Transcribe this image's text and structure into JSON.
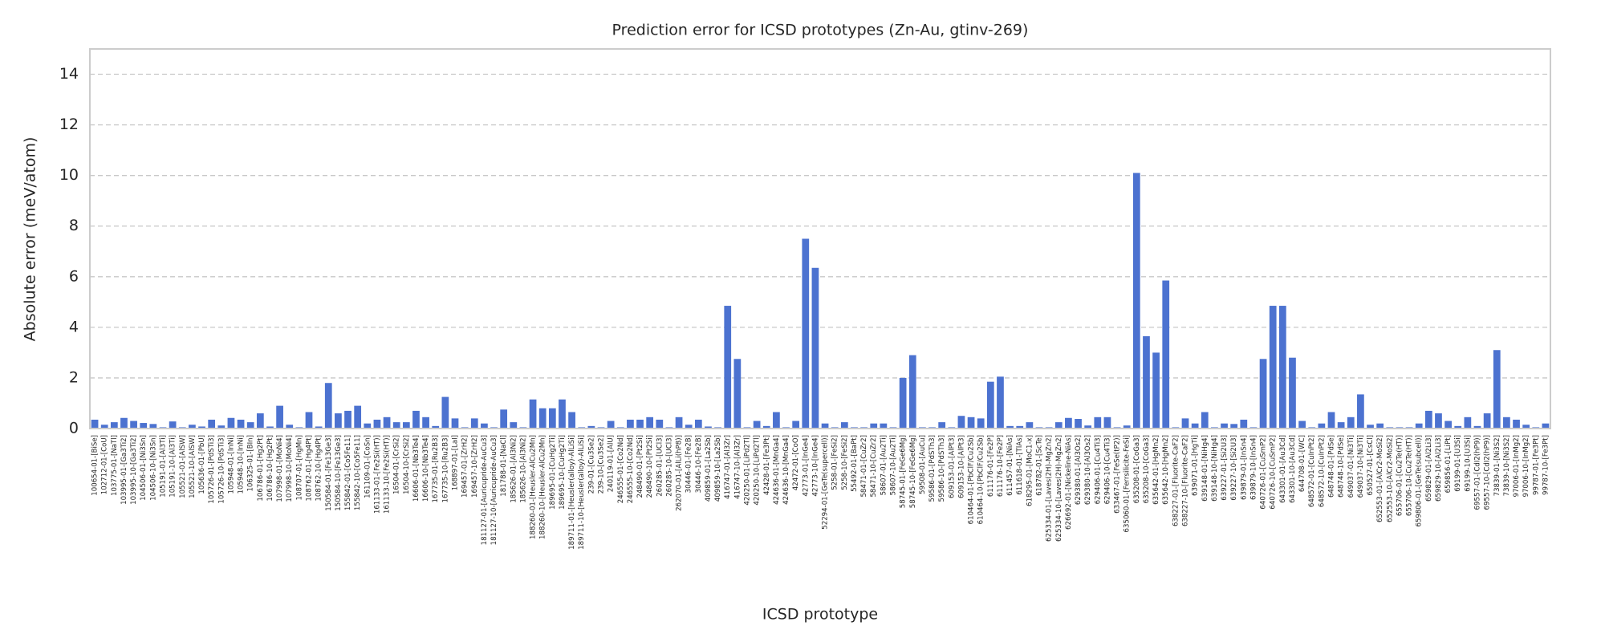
{
  "chart_data": {
    "type": "bar",
    "title": "Prediction error for ICSD prototypes (Zn-Au, gtinv-269)",
    "x_label": "ICSD prototype",
    "y_label": "Absolute error (meV/atom)",
    "color": "#4c72d0",
    "grid": true,
    "ylim": [
      0,
      15
    ],
    "yticks": [
      0,
      2,
      4,
      6,
      8,
      10,
      12,
      14
    ],
    "categories": [
      "100654-01-[BiSe]",
      "102712-01-[CoU]",
      "103775-01-[NaTl]",
      "103995-01-[Ga3Ti2]",
      "103995-10-[Ga3Ti2]",
      "104506-01-[Ni3Sn]",
      "104506-10-[Ni3Sn]",
      "105191-01-[Al3Ti]",
      "105191-10-[Al3Ti]",
      "105521-01-[AlSW]",
      "105521-10-[AlSW]",
      "105636-01-[PbU]",
      "105726-01-[PdSTi3]",
      "105726-10-[PdSTi3]",
      "105948-01-[InNi]",
      "105948-10-[InNi]",
      "106325-01-[BIn]",
      "106786-01-[Hg2Pt]",
      "106786-10-[Hg2Pt]",
      "107998-01-[MoNi4]",
      "107998-10-[MoNi4]",
      "108707-01-[HgMn]",
      "108762-01-[Hg4Pt]",
      "108762-10-[Hg4Pt]",
      "150584-01-[Fe13Ge3]",
      "150584-10-[Fe13Ge3]",
      "155842-01-[Co5Fe11]",
      "155842-10-[Co5Fe11]",
      "161109-01-[CoSn]",
      "161133-01-[Fe2Si(HT)]",
      "161133-10-[Fe2Si(HT)]",
      "16504-01-[CrSi2]",
      "16504-10-[CrSi2]",
      "16606-01-[Nb3Te4]",
      "16606-10-[Nb3Te4]",
      "167735-01-[Ru2B3]",
      "167735-10-[Ru2B3]",
      "168897-01-[LaI]",
      "169457-01-[ZrH2]",
      "169457-10-[ZrH2]",
      "181127-01-[Auricupride-AuCu3]",
      "181127-10-[Auricupride-AuCu3]",
      "181788-01-[NaCl]",
      "185626-01-[Al3Ni2]",
      "185626-10-[Al3Ni2]",
      "188260-01-[Heusler-AlCu2Mn]",
      "188260-10-[Heusler-AlCu2Mn]",
      "189695-01-[CuHg2Ti]",
      "189695-10-[CuHg2Ti]",
      "189711-01-[Heusler(alloy)-AlLiSi]",
      "189711-10-[Heusler(alloy)-AlLiSi]",
      "239-01-[Cu3Se2]",
      "239-10-[Cu3Se2]",
      "240119-01-[AlU]",
      "246555-01-[Co2Nd]",
      "246555-10-[Co2Nd]",
      "248490-01-[Pt2Si]",
      "248490-10-[Pt2Si]",
      "260285-01-[UCl3]",
      "260285-10-[UCl3]",
      "262070-01-[AlLi(hP8)]",
      "30446-01-[Fe2B]",
      "30446-10-[Fe2B]",
      "409859-01-[La2Sb]",
      "409859-10-[La2Sb]",
      "416747-01-[Al3Zr]",
      "416747-10-[Al3Zr]",
      "420250-01-[LiPd2Tl]",
      "420250-10-[LiPd2Tl]",
      "42428-01-[Fe3Pt]",
      "424636-01-[MnGa4]",
      "424636-10-[MnGa4]",
      "42472-01-[CoO]",
      "42773-01-[InGe4]",
      "42773-10-[InGe4]",
      "52294-01-[GeTe(supercell)]",
      "5258-01-[FeSi2]",
      "5258-10-[FeSi2]",
      "55492-01-[BaPt]",
      "58471-01-[CuZr2]",
      "58471-10-[CuZr2]",
      "58607-01-[Au2Ti]",
      "58607-10-[Au2Ti]",
      "58745-01-[FeGe6Mg]",
      "58745-10-[FeGe6Mg]",
      "59508-01-[AuCu]",
      "59586-01-[PdSTh3]",
      "59586-10-[PdSTh3]",
      "609153-01-[AlPt3]",
      "609153-10-[AlPt3]",
      "610464-01-[PbClF/Cu2Sb]",
      "610464-10-[PbClF/Cu2Sb]",
      "611176-01-[Fe2P]",
      "611176-10-[Fe2P]",
      "611457-01-[NiAs]",
      "611618-01-[TlAs]",
      "618295-01-[MoC1-x]",
      "618782-01-[ScTe]",
      "625334-01-[Laves(2H)-MgZn2]",
      "625334-10-[Laves(2H)-MgZn2]",
      "626692-01-[Nickeline-NiAs]",
      "629380-01-[Al3Os2]",
      "629380-10-[Al3Os2]",
      "629406-01-[Cu4Ti3]",
      "629406-10-[Cu4Ti3]",
      "633467-01-[FeSe(tP2)]",
      "635060-01-[Ferrsilicite-FeSi]",
      "635208-01-[CoGa3]",
      "635208-10-[CoGa3]",
      "635642-01-[HgMn2]",
      "635642-10-[HgMn2]",
      "638227-01-[Fluorite-CaF2]",
      "638227-10-[Fluorite-CaF2]",
      "639071-01-[HgTi]",
      "639148-01-[NiHg4]",
      "639148-10-[NiHg4]",
      "639227-01-[Si2U3]",
      "639227-10-[Si2U3]",
      "639879-01-[InSn4]",
      "639879-10-[InSn4]",
      "640726-01-[CuSmP2]",
      "640726-10-[CuSmP2]",
      "643301-01-[Au3Cd]",
      "643301-10-[Au3Cd]",
      "644708-01-[WC]",
      "648572-01-[CuInPt2]",
      "648572-10-[CuInPt2]",
      "648748-01-[PdSe]",
      "648748-10-[PdSe]",
      "649037-01-[Ni3Ti]",
      "649037-10-[Ni3Ti]",
      "650527-01-[CsCl]",
      "652553-01-[AlCr2-MoSi2]",
      "652553-10-[AlCr2-MoSi2]",
      "655706-01-[Cu2Te(HT)]",
      "655706-10-[Cu2Te(HT)]",
      "659806-01-[GeTe(subcell)]",
      "659829-01-[Al2Li3]",
      "659829-10-[Al2Li3]",
      "659856-01-[LiPt]",
      "69199-01-[U3Si]",
      "69199-10-[U3Si]",
      "69557-01-[CdI2(hP9)]",
      "69557-10-[CdI2(hP9)]",
      "73839-01-[Ni3S2]",
      "73839-10-[Ni3S2]",
      "97006-01-[InMg2]",
      "97006-10-[InMg2]",
      "99787-01-[Fe3Pt]",
      "99787-10-[Fe3Pt]"
    ],
    "values": [
      0.35,
      0.15,
      0.25,
      0.42,
      0.3,
      0.22,
      0.18,
      0.05,
      0.28,
      0.05,
      0.15,
      0.08,
      0.35,
      0.12,
      0.42,
      0.35,
      0.25,
      0.6,
      0.08,
      0.9,
      0.15,
      0.05,
      0.65,
      0.08,
      1.8,
      0.6,
      0.7,
      0.9,
      0.2,
      0.35,
      0.45,
      0.25,
      0.25,
      0.7,
      0.45,
      0.1,
      1.25,
      0.4,
      0.05,
      0.4,
      0.2,
      0.05,
      0.75,
      0.25,
      0.05,
      1.15,
      0.8,
      0.8,
      1.15,
      0.65,
      0.05,
      0.1,
      0.05,
      0.3,
      0.05,
      0.35,
      0.35,
      0.45,
      0.35,
      0.05,
      0.45,
      0.15,
      0.35,
      0.08,
      0.05,
      4.85,
      2.75,
      0.05,
      0.3,
      0.1,
      0.65,
      0.05,
      0.3,
      7.5,
      6.35,
      0.2,
      0.05,
      0.25,
      0.05,
      0.05,
      0.2,
      0.2,
      0.05,
      2.0,
      2.9,
      0.05,
      0.05,
      0.25,
      0.05,
      0.5,
      0.45,
      0.4,
      1.85,
      2.05,
      0.1,
      0.1,
      0.25,
      0.05,
      0.05,
      0.25,
      0.42,
      0.38,
      0.12,
      0.45,
      0.45,
      0.05,
      0.12,
      10.1,
      3.65,
      3.0,
      5.85,
      0.05,
      0.4,
      0.2,
      0.65,
      0.05,
      0.2,
      0.18,
      0.35,
      0.05,
      2.75,
      4.85,
      4.85,
      2.8,
      0.3,
      0.05,
      0.2,
      0.65,
      0.25,
      0.45,
      1.35,
      0.15,
      0.2,
      0.05,
      0.05,
      0.05,
      0.2,
      0.7,
      0.6,
      0.3,
      0.1,
      0.45,
      0.1,
      0.6,
      3.1,
      0.45,
      0.35,
      0.15,
      0.05,
      0.2
    ]
  }
}
